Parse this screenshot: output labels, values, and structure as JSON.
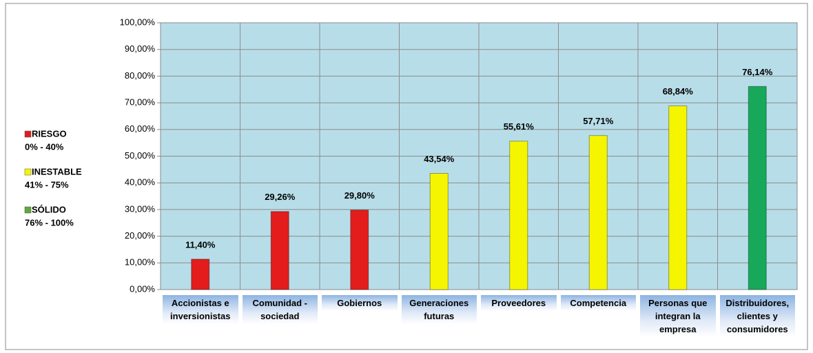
{
  "chart_data": {
    "type": "bar",
    "categories": [
      "Accionistas e inversionistas",
      "Comunidad - sociedad",
      "Gobiernos",
      "Generaciones futuras",
      "Proveedores",
      "Competencia",
      "Personas que integran la empresa",
      "Distribuidores, clientes y consumidores"
    ],
    "values": [
      11.4,
      29.26,
      29.8,
      43.54,
      55.61,
      57.71,
      68.84,
      76.14
    ],
    "value_labels": [
      "11,40%",
      "29,26%",
      "29,80%",
      "43,54%",
      "55,61%",
      "57,71%",
      "68,84%",
      "76,14%"
    ],
    "colors": [
      "#e31c1c",
      "#e31c1c",
      "#e31c1c",
      "#f5f500",
      "#f5f500",
      "#f5f500",
      "#f5f500",
      "#17a85a"
    ],
    "ylim": [
      0,
      100
    ],
    "yticks": [
      {
        "value": 0,
        "label": "0,00%"
      },
      {
        "value": 10,
        "label": "10,00%"
      },
      {
        "value": 20,
        "label": "20,00%"
      },
      {
        "value": 30,
        "label": "30,00%"
      },
      {
        "value": 40,
        "label": "40,00%"
      },
      {
        "value": 50,
        "label": "50,00%"
      },
      {
        "value": 60,
        "label": "60,00%"
      },
      {
        "value": 70,
        "label": "70,00%"
      },
      {
        "value": 80,
        "label": "80,00%"
      },
      {
        "value": 90,
        "label": "90,00%"
      },
      {
        "value": 100,
        "label": "100,00%"
      }
    ],
    "grid": true,
    "legend": [
      {
        "label": "RIESGO",
        "range": "0% - 40%",
        "color": "#e31c1c"
      },
      {
        "label": "INESTABLE",
        "range": "41% - 75%",
        "color": "#f5f500"
      },
      {
        "label": "SÓLIDO",
        "range": "76% - 100%",
        "color": "#5fa83a"
      }
    ]
  }
}
